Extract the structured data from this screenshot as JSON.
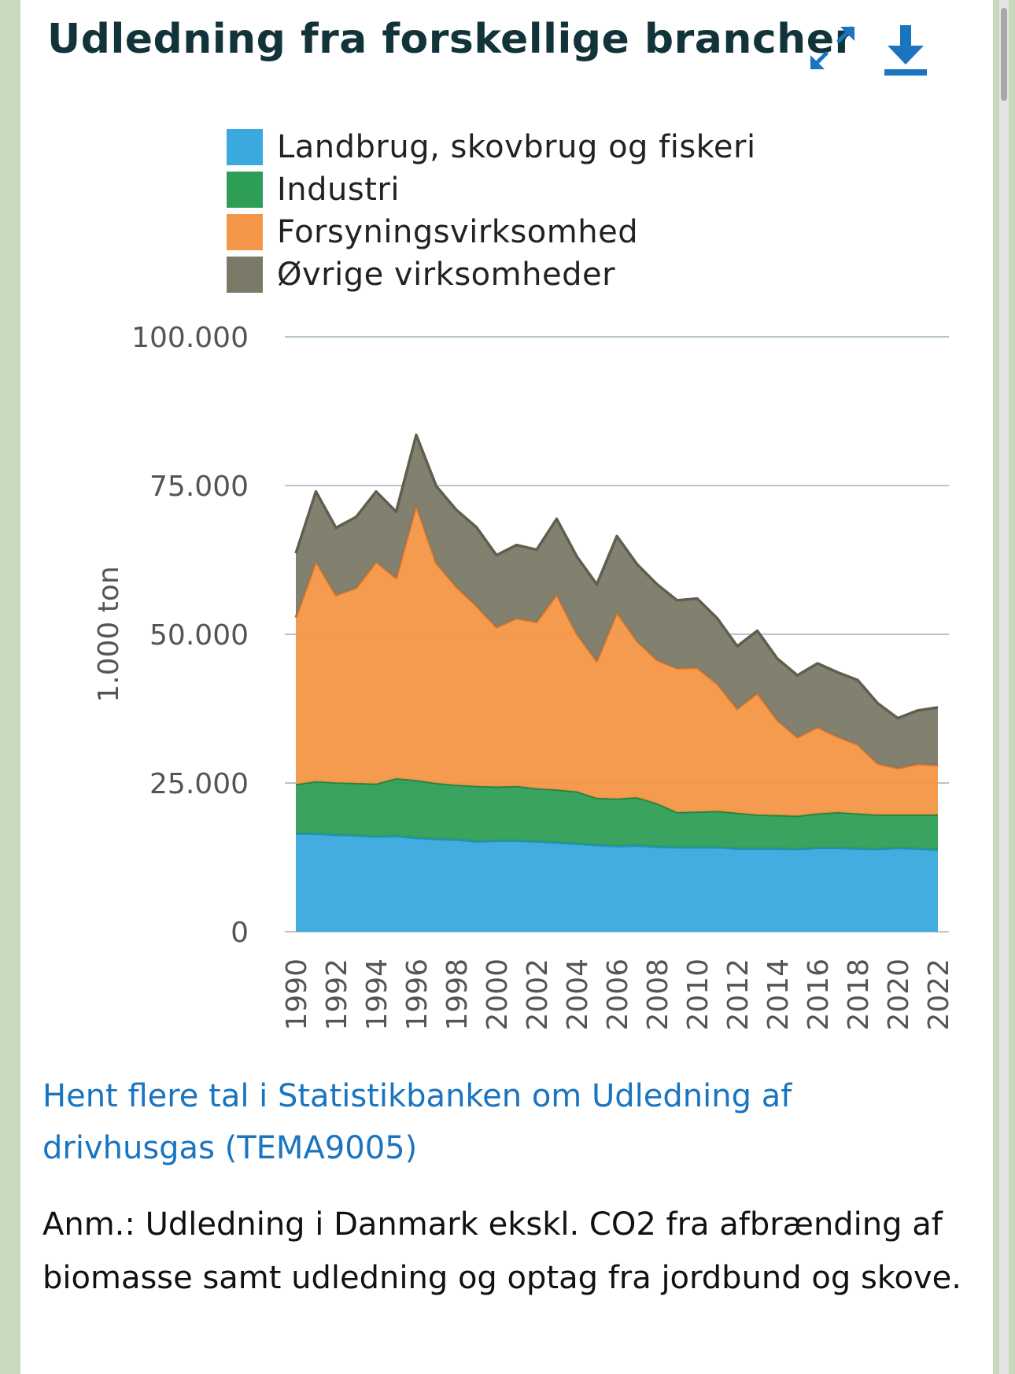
{
  "title": "Udledning fra forskellige brancher",
  "icons": {
    "expand": "expand-icon",
    "download": "download-icon"
  },
  "link_text": "Hent flere tal i Statistikbanken om Udledning af drivhusgas (TEMA9005)",
  "note_text": "Anm.: Udledning i Danmark ekskl. CO2 fra afbrænding af biomasse samt udledning og optag fra jordbund og skove.",
  "colors": {
    "title": "#12333a",
    "link": "#1a74c0",
    "accent_icon": "#1a74c0"
  },
  "chart_data": {
    "type": "area",
    "stacked": true,
    "title": "Udledning fra forskellige brancher",
    "ylabel": "1.000 ton",
    "xlabel": "",
    "ylim": [
      0,
      100000
    ],
    "yticks": [
      0,
      25000,
      50000,
      75000,
      100000
    ],
    "ytick_labels": [
      "0",
      "25.000",
      "50.000",
      "75.000",
      "100.000"
    ],
    "xtick_labels": [
      "1990",
      "1992",
      "1994",
      "1996",
      "1998",
      "2000",
      "2002",
      "2004",
      "2006",
      "2008",
      "2010",
      "2012",
      "2014",
      "2016",
      "2018",
      "2020",
      "2022"
    ],
    "legend_position": "top",
    "x": [
      1990,
      1991,
      1992,
      1993,
      1994,
      1995,
      1996,
      1997,
      1998,
      1999,
      2000,
      2001,
      2002,
      2003,
      2004,
      2005,
      2006,
      2007,
      2008,
      2009,
      2010,
      2011,
      2012,
      2013,
      2014,
      2015,
      2016,
      2017,
      2018,
      2019,
      2020,
      2021,
      2022
    ],
    "series": [
      {
        "name": "Landbrug, skovbrug og fiskeri",
        "color": "#3aa9de",
        "values": [
          16500,
          16500,
          16300,
          16200,
          16000,
          16100,
          15800,
          15600,
          15500,
          15200,
          15300,
          15300,
          15200,
          15000,
          14800,
          14600,
          14400,
          14500,
          14300,
          14200,
          14200,
          14200,
          14000,
          14000,
          14000,
          13900,
          14100,
          14100,
          14000,
          13900,
          14100,
          14000,
          13800
        ]
      },
      {
        "name": "Industri",
        "color": "#2e9e56",
        "values": [
          8300,
          8800,
          8800,
          8800,
          8900,
          9700,
          9700,
          9400,
          9200,
          9300,
          9100,
          9200,
          8900,
          8900,
          8800,
          7900,
          8000,
          8100,
          7300,
          5900,
          6000,
          6100,
          6000,
          5700,
          5600,
          5600,
          5800,
          6000,
          5900,
          5800,
          5600,
          5700,
          5900
        ]
      },
      {
        "name": "Forsyningsvirksomhed",
        "color": "#f49647",
        "values": [
          28000,
          37000,
          31500,
          32800,
          37300,
          33700,
          46200,
          37000,
          33300,
          30300,
          26800,
          28200,
          28000,
          32800,
          26500,
          23000,
          31300,
          26300,
          24100,
          24200,
          24200,
          21400,
          17500,
          20400,
          16000,
          13200,
          14500,
          12700,
          11600,
          8600,
          7800,
          8500,
          8300
        ]
      },
      {
        "name": "Øvrige virksomheder",
        "color": "#7b7a68",
        "values": [
          10800,
          11700,
          11300,
          11900,
          11800,
          11100,
          11800,
          12900,
          12900,
          13200,
          12100,
          12300,
          12100,
          12700,
          13000,
          12900,
          12800,
          12900,
          12700,
          11400,
          11600,
          11000,
          10500,
          10500,
          10300,
          10400,
          10700,
          10800,
          10800,
          10100,
          8400,
          9000,
          9700
        ]
      }
    ]
  }
}
